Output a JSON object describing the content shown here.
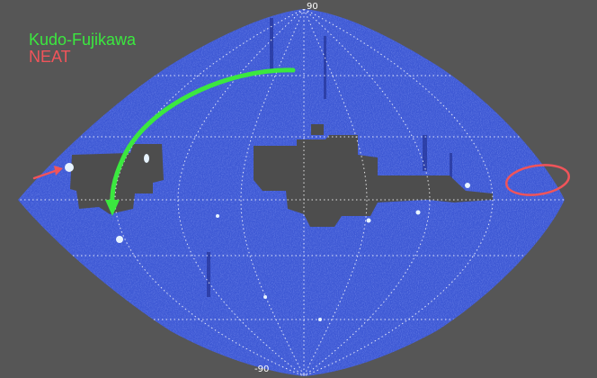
{
  "map": {
    "north_label": "90",
    "south_label": "-90",
    "legend": [
      {
        "label": "Kudo-Fujikawa",
        "color": "#3be83f"
      },
      {
        "label": "NEAT",
        "color": "#f0545a"
      }
    ],
    "colors": {
      "background": "#565656",
      "sky": "#3d58d4",
      "sky_dark": "#2a3fb5",
      "mask": "#4d4d4d",
      "grid": "#ffffff",
      "bright": "#e8f4ff"
    }
  }
}
